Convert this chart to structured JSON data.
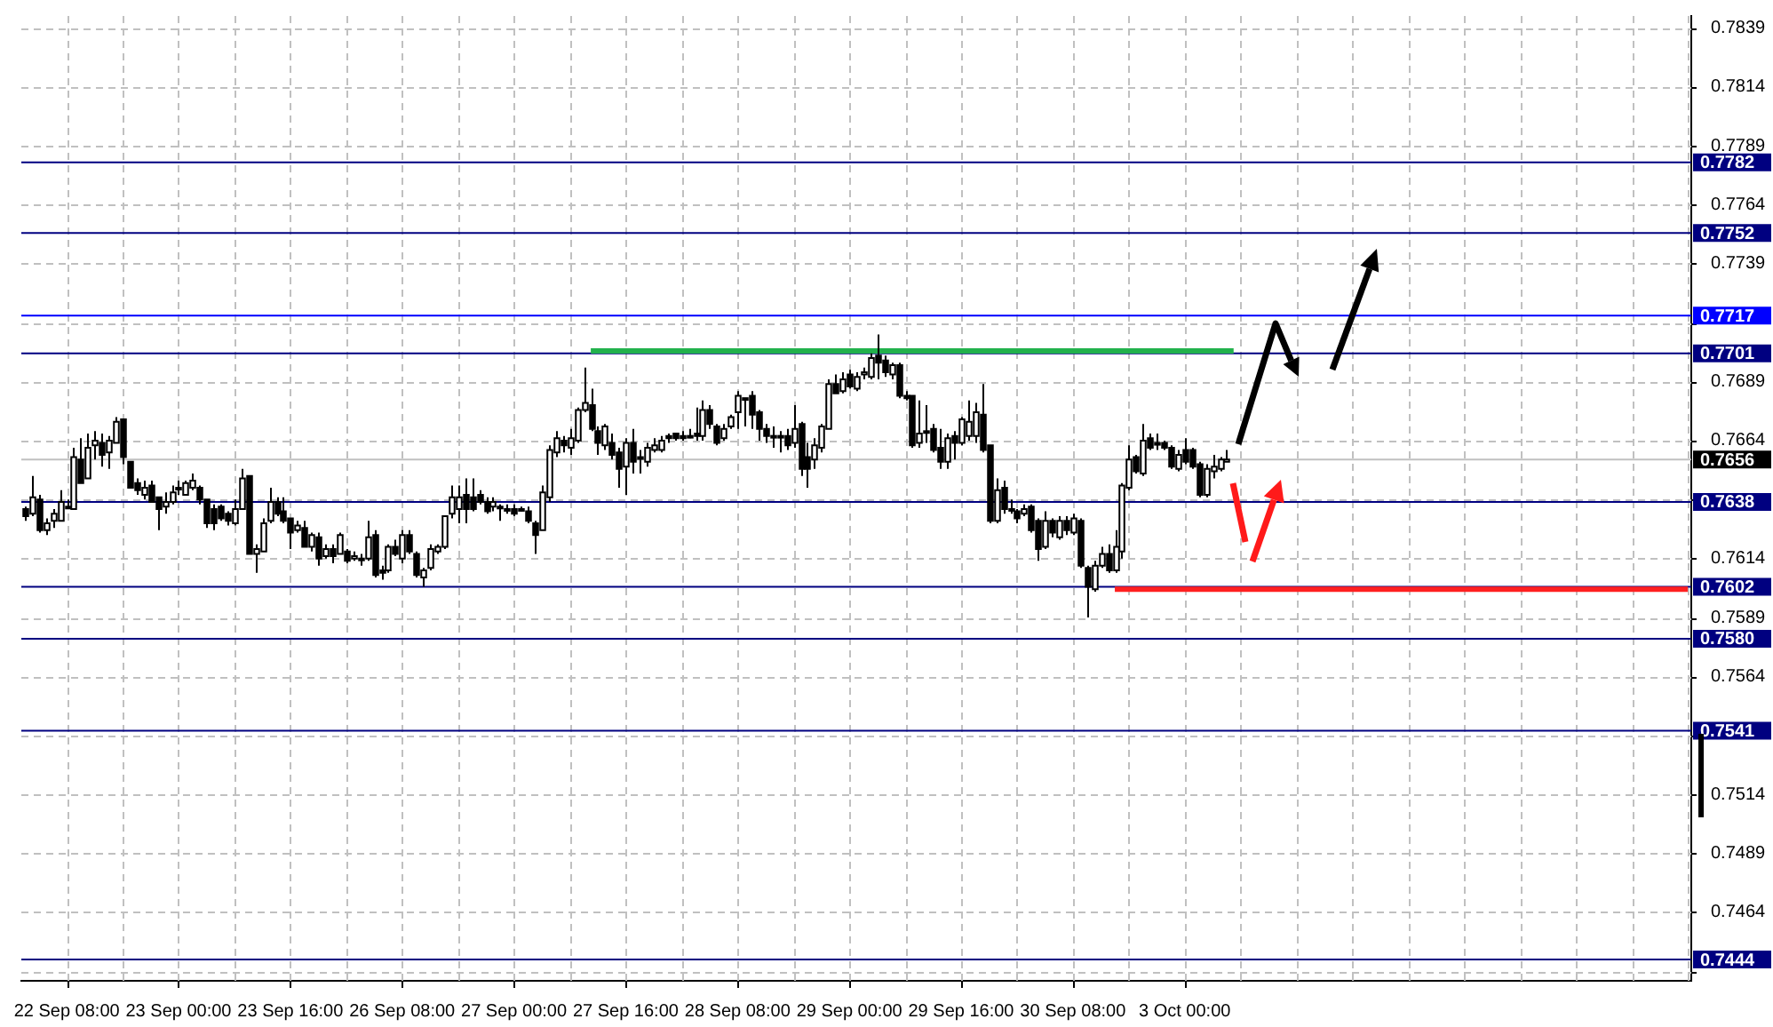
{
  "chart_data": {
    "type": "candlestick",
    "categories": [
      null,
      null,
      null,
      null,
      null,
      null,
      "22 Sep 08:00",
      null,
      null,
      null,
      null,
      null,
      null,
      null,
      null,
      null,
      null,
      null,
      null,
      null,
      null,
      null,
      "23 Sep 00:00",
      null,
      null,
      null,
      null,
      null,
      null,
      null,
      null,
      null,
      null,
      null,
      null,
      null,
      null,
      null,
      "23 Sep 16:00",
      null,
      null,
      null,
      null,
      null,
      null,
      null,
      null,
      null,
      null,
      null,
      null,
      null,
      null,
      null,
      "26 Sep 08:00",
      null,
      null,
      null,
      null,
      null,
      null,
      null,
      null,
      null,
      null,
      null,
      null,
      null,
      null,
      null,
      "27 Sep 00:00",
      null,
      null,
      null,
      null,
      null,
      null,
      null,
      null,
      null,
      null,
      null,
      null,
      null,
      null,
      null,
      "27 Sep 16:00",
      null,
      null,
      null,
      null,
      null,
      null,
      null,
      null,
      null,
      null,
      null,
      null,
      null,
      null,
      null,
      "28 Sep 08:00",
      null,
      null,
      null,
      null,
      null,
      null,
      null,
      null,
      null,
      null,
      null,
      null,
      null,
      null,
      null,
      "29 Sep 00:00",
      null,
      null,
      null,
      null,
      null,
      null,
      null,
      null,
      null,
      null,
      null,
      null,
      null,
      null,
      null,
      "29 Sep 16:00",
      null,
      null,
      null,
      null,
      null,
      null,
      null,
      null,
      null,
      null,
      null,
      null,
      null,
      null,
      null,
      "30 Sep 08:00",
      null,
      null,
      null,
      null,
      null,
      null,
      null,
      null,
      null,
      null,
      null,
      null,
      null,
      null,
      null,
      "3 Oct 00:00",
      null,
      null,
      null,
      null,
      null,
      null,
      null,
      null,
      null,
      null,
      null,
      null,
      null,
      null,
      null,
      null,
      null,
      null,
      null,
      null,
      null,
      null,
      null,
      null,
      null,
      null,
      null,
      null,
      null,
      null,
      null,
      null,
      null,
      null,
      null,
      null,
      null,
      null,
      null,
      null,
      null,
      null,
      null,
      null,
      null,
      null,
      null,
      null,
      null,
      null,
      null,
      null,
      null,
      null,
      null,
      null,
      null,
      null,
      null,
      null,
      null,
      null,
      null,
      null,
      null,
      null,
      null,
      null,
      null,
      null,
      null,
      null
    ],
    "ohlc": [
      [
        0.7635,
        0.7636,
        0.763,
        0.7632
      ],
      [
        0.7633,
        0.7649,
        0.7632,
        0.764
      ],
      [
        0.7639,
        0.7641,
        0.7625,
        0.7626
      ],
      [
        0.7626,
        0.7631,
        0.7624,
        0.7629
      ],
      [
        0.763,
        0.7635,
        0.7627,
        0.7633
      ],
      [
        0.763,
        0.7643,
        0.763,
        0.7638
      ],
      [
        0.7636,
        0.7639,
        0.7635,
        0.7636
      ],
      [
        0.7635,
        0.7661,
        0.7635,
        0.7657
      ],
      [
        0.7656,
        0.7665,
        0.7646,
        0.7646
      ],
      [
        0.7648,
        0.7667,
        0.7648,
        0.7661
      ],
      [
        0.7662,
        0.7668,
        0.7656,
        0.7664
      ],
      [
        0.7663,
        0.7667,
        0.7653,
        0.7658
      ],
      [
        0.7659,
        0.7666,
        0.7652,
        0.7664
      ],
      [
        0.7663,
        0.7674,
        0.7663,
        0.7672
      ],
      [
        0.7673,
        0.7673,
        0.7654,
        0.7657
      ],
      [
        0.7655,
        0.7655,
        0.7644,
        0.7644
      ],
      [
        0.7646,
        0.7648,
        0.7641,
        0.7643
      ],
      [
        0.7641,
        0.7647,
        0.7639,
        0.7644
      ],
      [
        0.7645,
        0.7647,
        0.7638,
        0.7638
      ],
      [
        0.764,
        0.764,
        0.7626,
        0.7635
      ],
      [
        0.7636,
        0.7642,
        0.7633,
        0.7638
      ],
      [
        0.7638,
        0.7645,
        0.7637,
        0.7642
      ],
      [
        0.7644,
        0.7647,
        0.7641,
        0.7644
      ],
      [
        0.7641,
        0.7647,
        0.7641,
        0.7646
      ],
      [
        0.7644,
        0.765,
        0.7643,
        0.7647
      ],
      [
        0.7644,
        0.7645,
        0.7637,
        0.7639
      ],
      [
        0.7639,
        0.7639,
        0.7627,
        0.7629
      ],
      [
        0.7635,
        0.7637,
        0.7626,
        0.7629
      ],
      [
        0.7636,
        0.7637,
        0.763,
        0.7631
      ],
      [
        0.7633,
        0.7634,
        0.7628,
        0.763
      ],
      [
        0.7629,
        0.7639,
        0.7628,
        0.7635
      ],
      [
        0.7635,
        0.7652,
        0.7635,
        0.7648
      ],
      [
        0.7649,
        0.7649,
        0.7616,
        0.7616
      ],
      [
        0.7616,
        0.762,
        0.7608,
        0.7618
      ],
      [
        0.7617,
        0.7631,
        0.7617,
        0.7629
      ],
      [
        0.763,
        0.7644,
        0.7629,
        0.7638
      ],
      [
        0.7638,
        0.764,
        0.7632,
        0.7633
      ],
      [
        0.7634,
        0.764,
        0.7629,
        0.763
      ],
      [
        0.7631,
        0.7631,
        0.7618,
        0.7625
      ],
      [
        0.7626,
        0.763,
        0.7625,
        0.7628
      ],
      [
        0.7627,
        0.763,
        0.7619,
        0.7619
      ],
      [
        0.7619,
        0.7625,
        0.7617,
        0.7624
      ],
      [
        0.7623,
        0.7625,
        0.7611,
        0.7614
      ],
      [
        0.7615,
        0.762,
        0.7614,
        0.7618
      ],
      [
        0.7618,
        0.762,
        0.7612,
        0.7615
      ],
      [
        0.7616,
        0.7625,
        0.7616,
        0.7624
      ],
      [
        0.7617,
        0.7618,
        0.7612,
        0.7613
      ],
      [
        0.7614,
        0.7617,
        0.7613,
        0.7615
      ],
      [
        0.7614,
        0.7616,
        0.7611,
        0.7614
      ],
      [
        0.7614,
        0.763,
        0.7613,
        0.7623
      ],
      [
        0.7624,
        0.7626,
        0.7606,
        0.7607
      ],
      [
        0.7609,
        0.7611,
        0.7605,
        0.7608
      ],
      [
        0.7609,
        0.762,
        0.7608,
        0.7619
      ],
      [
        0.7619,
        0.7622,
        0.7615,
        0.7616
      ],
      [
        0.7614,
        0.7626,
        0.7612,
        0.7624
      ],
      [
        0.7624,
        0.7626,
        0.7616,
        0.7617
      ],
      [
        0.7616,
        0.7617,
        0.7606,
        0.7607
      ],
      [
        0.7606,
        0.761,
        0.7602,
        0.7609
      ],
      [
        0.761,
        0.762,
        0.7609,
        0.7618
      ],
      [
        0.7617,
        0.762,
        0.7616,
        0.7619
      ],
      [
        0.7619,
        0.7632,
        0.7618,
        0.7632
      ],
      [
        0.7633,
        0.7645,
        0.7631,
        0.764
      ],
      [
        0.7635,
        0.7645,
        0.7629,
        0.764
      ],
      [
        0.7641,
        0.7648,
        0.7629,
        0.7635
      ],
      [
        0.764,
        0.7648,
        0.7634,
        0.7635
      ],
      [
        0.7641,
        0.7643,
        0.7637,
        0.7638
      ],
      [
        0.7638,
        0.764,
        0.7633,
        0.7634
      ],
      [
        0.7636,
        0.764,
        0.7634,
        0.7638
      ],
      [
        0.7636,
        0.7637,
        0.763,
        0.7636
      ],
      [
        0.7635,
        0.7637,
        0.7633,
        0.7635
      ],
      [
        0.7635,
        0.7637,
        0.7632,
        0.7633
      ],
      [
        0.7635,
        0.7636,
        0.7634,
        0.7635
      ],
      [
        0.7634,
        0.7636,
        0.7629,
        0.763
      ],
      [
        0.7629,
        0.763,
        0.7616,
        0.7624
      ],
      [
        0.7626,
        0.7645,
        0.7626,
        0.7642
      ],
      [
        0.764,
        0.7662,
        0.7638,
        0.766
      ],
      [
        0.7659,
        0.7668,
        0.7657,
        0.7665
      ],
      [
        0.7664,
        0.7666,
        0.7659,
        0.7662
      ],
      [
        0.7661,
        0.7669,
        0.7658,
        0.7665
      ],
      [
        0.7664,
        0.7678,
        0.7663,
        0.7677
      ],
      [
        0.7677,
        0.7695,
        0.7676,
        0.768
      ],
      [
        0.7679,
        0.7686,
        0.7668,
        0.7669
      ],
      [
        0.7668,
        0.767,
        0.7658,
        0.7663
      ],
      [
        0.7662,
        0.7671,
        0.766,
        0.767
      ],
      [
        0.7663,
        0.7667,
        0.7656,
        0.7658
      ],
      [
        0.7659,
        0.7661,
        0.7644,
        0.7652
      ],
      [
        0.7653,
        0.7665,
        0.7641,
        0.7663
      ],
      [
        0.7663,
        0.7669,
        0.765,
        0.7655
      ],
      [
        0.7657,
        0.766,
        0.765,
        0.7657
      ],
      [
        0.7655,
        0.7663,
        0.7653,
        0.7661
      ],
      [
        0.766,
        0.7665,
        0.7659,
        0.7662
      ],
      [
        0.766,
        0.7666,
        0.7659,
        0.7664
      ],
      [
        0.7666,
        0.7667,
        0.7663,
        0.7665
      ],
      [
        0.7667,
        0.7667,
        0.7664,
        0.7665
      ],
      [
        0.7666,
        0.7668,
        0.7664,
        0.7665
      ],
      [
        0.7666,
        0.7669,
        0.7665,
        0.7666
      ],
      [
        0.7667,
        0.7678,
        0.7664,
        0.7666
      ],
      [
        0.7666,
        0.7681,
        0.7664,
        0.7677
      ],
      [
        0.7677,
        0.7679,
        0.7669,
        0.7671
      ],
      [
        0.767,
        0.7671,
        0.7662,
        0.7663
      ],
      [
        0.7665,
        0.7671,
        0.7664,
        0.7669
      ],
      [
        0.767,
        0.7675,
        0.7669,
        0.7674
      ],
      [
        0.7676,
        0.7685,
        0.7669,
        0.7683
      ],
      [
        0.7682,
        0.7682,
        0.767,
        0.7682
      ],
      [
        0.7683,
        0.7685,
        0.7669,
        0.7675
      ],
      [
        0.7676,
        0.7677,
        0.7664,
        0.7669
      ],
      [
        0.7669,
        0.7671,
        0.7663,
        0.7666
      ],
      [
        0.7666,
        0.767,
        0.7661,
        0.7666
      ],
      [
        0.7666,
        0.7668,
        0.7659,
        0.7666
      ],
      [
        0.7666,
        0.7669,
        0.766,
        0.7662
      ],
      [
        0.7663,
        0.7679,
        0.7661,
        0.7669
      ],
      [
        0.7671,
        0.7672,
        0.7649,
        0.7652
      ],
      [
        0.7657,
        0.7663,
        0.7644,
        0.7652
      ],
      [
        0.7656,
        0.7665,
        0.7652,
        0.7662
      ],
      [
        0.7661,
        0.7671,
        0.7659,
        0.767
      ],
      [
        0.7669,
        0.769,
        0.7669,
        0.7688
      ],
      [
        0.7688,
        0.7692,
        0.7684,
        0.7684
      ],
      [
        0.7685,
        0.7693,
        0.7684,
        0.769
      ],
      [
        0.7692,
        0.7694,
        0.7686,
        0.7687
      ],
      [
        0.7686,
        0.7693,
        0.7685,
        0.7691
      ],
      [
        0.7692,
        0.7695,
        0.769,
        0.7693
      ],
      [
        0.7691,
        0.7701,
        0.769,
        0.7699
      ],
      [
        0.77,
        0.7709,
        0.769,
        0.7697
      ],
      [
        0.7698,
        0.77,
        0.7691,
        0.7693
      ],
      [
        0.7692,
        0.7697,
        0.769,
        0.7696
      ],
      [
        0.7696,
        0.7697,
        0.7682,
        0.7683
      ],
      [
        0.7683,
        0.7685,
        0.7681,
        0.7682
      ],
      [
        0.7683,
        0.7683,
        0.7661,
        0.7662
      ],
      [
        0.7663,
        0.7681,
        0.7661,
        0.7667
      ],
      [
        0.7668,
        0.7679,
        0.7663,
        0.7668
      ],
      [
        0.7669,
        0.7671,
        0.7659,
        0.766
      ],
      [
        0.7661,
        0.7669,
        0.7652,
        0.7655
      ],
      [
        0.7655,
        0.7667,
        0.7652,
        0.7665
      ],
      [
        0.7666,
        0.7668,
        0.7656,
        0.7663
      ],
      [
        0.7663,
        0.7674,
        0.7662,
        0.7673
      ],
      [
        0.7666,
        0.7681,
        0.7664,
        0.7672
      ],
      [
        0.7666,
        0.768,
        0.7663,
        0.7676
      ],
      [
        0.7675,
        0.7688,
        0.7659,
        0.766
      ],
      [
        0.7662,
        0.7662,
        0.7629,
        0.763
      ],
      [
        0.763,
        0.7648,
        0.7629,
        0.7643
      ],
      [
        0.7644,
        0.7647,
        0.7633,
        0.7635
      ],
      [
        0.7635,
        0.7639,
        0.7633,
        0.7635
      ],
      [
        0.7634,
        0.7635,
        0.7629,
        0.7631
      ],
      [
        0.7633,
        0.7637,
        0.7632,
        0.7635
      ],
      [
        0.7636,
        0.7637,
        0.7625,
        0.7626
      ],
      [
        0.763,
        0.7631,
        0.7613,
        0.7618
      ],
      [
        0.7619,
        0.7634,
        0.7618,
        0.763
      ],
      [
        0.763,
        0.7631,
        0.7623,
        0.7625
      ],
      [
        0.7623,
        0.7632,
        0.7622,
        0.763
      ],
      [
        0.763,
        0.7632,
        0.7624,
        0.7626
      ],
      [
        0.7625,
        0.7633,
        0.7624,
        0.7631
      ],
      [
        0.763,
        0.7631,
        0.761,
        0.7611
      ],
      [
        0.761,
        0.7611,
        0.7589,
        0.7602
      ],
      [
        0.7601,
        0.7613,
        0.76,
        0.7611
      ],
      [
        0.7611,
        0.7619,
        0.761,
        0.7616
      ],
      [
        0.7616,
        0.762,
        0.7608,
        0.7609
      ],
      [
        0.7609,
        0.7626,
        0.7608,
        0.7619
      ],
      [
        0.7617,
        0.7646,
        0.7614,
        0.7645
      ],
      [
        0.7644,
        0.7662,
        0.7643,
        0.7656
      ],
      [
        0.7657,
        0.7658,
        0.765,
        0.7651
      ],
      [
        0.765,
        0.7671,
        0.7649,
        0.7664
      ],
      [
        0.7665,
        0.7667,
        0.766,
        0.7661
      ],
      [
        0.7663,
        0.7667,
        0.766,
        0.7663
      ],
      [
        0.7663,
        0.7664,
        0.766,
        0.7661
      ],
      [
        0.7661,
        0.7662,
        0.7652,
        0.7653
      ],
      [
        0.7652,
        0.766,
        0.7651,
        0.7658
      ],
      [
        0.766,
        0.7665,
        0.7654,
        0.7655
      ],
      [
        0.766,
        0.7661,
        0.7652,
        0.7653
      ],
      [
        0.7654,
        0.7655,
        0.764,
        0.7641
      ],
      [
        0.7641,
        0.7654,
        0.764,
        0.7652
      ],
      [
        0.7651,
        0.7658,
        0.7648,
        0.7653
      ],
      [
        0.7652,
        0.7657,
        0.7651,
        0.7656
      ],
      [
        0.7655,
        0.766,
        0.7655,
        0.7656
      ],
      null,
      null,
      null,
      null,
      null,
      null,
      null,
      null,
      null,
      null,
      null,
      null,
      null,
      null,
      null,
      null,
      null,
      null,
      null,
      null,
      null,
      null,
      null,
      null,
      null,
      null,
      null,
      null,
      null,
      null,
      null,
      null,
      null,
      null,
      null,
      null,
      null,
      null,
      null,
      null,
      null,
      null,
      null,
      null,
      null,
      null,
      null,
      null,
      null,
      null,
      null,
      null,
      null,
      null,
      null,
      null,
      null,
      null,
      null,
      null,
      null,
      null,
      null,
      null,
      null,
      null
    ],
    "series": [
      {
        "type": "line",
        "color": "#22b14c",
        "values": [
          null,
          null,
          null,
          null,
          null,
          null,
          null,
          null,
          null,
          null,
          null,
          null,
          null,
          null,
          null,
          null,
          null,
          null,
          null,
          null,
          null,
          null,
          null,
          null,
          null,
          null,
          null,
          null,
          null,
          null,
          null,
          null,
          null,
          null,
          null,
          null,
          null,
          null,
          null,
          null,
          null,
          null,
          null,
          null,
          null,
          null,
          null,
          null,
          null,
          null,
          null,
          null,
          null,
          null,
          null,
          null,
          null,
          null,
          null,
          null,
          null,
          null,
          null,
          null,
          null,
          null,
          null,
          null,
          null,
          null,
          null,
          null,
          null,
          null,
          null,
          null,
          null,
          null,
          null,
          null,
          null,
          0.7702,
          0.7702,
          0.7702,
          0.7702,
          0.7702,
          0.7702,
          0.7702,
          0.7702,
          0.7702,
          0.7702,
          0.7702,
          0.7702,
          0.7702,
          0.7702,
          0.7702,
          0.7702,
          0.7702,
          0.7702,
          0.7702,
          0.7702,
          0.7702,
          0.7702,
          0.7702,
          0.7702,
          0.7702,
          0.7702,
          0.7702,
          0.7702,
          0.7702,
          0.7702,
          0.7702,
          0.7702,
          0.7702,
          0.7702,
          0.7702,
          0.7702,
          0.7702,
          0.7702,
          0.7702,
          0.7702,
          0.7702,
          0.7702,
          0.7702,
          0.7702,
          0.7702,
          0.7702,
          0.7702,
          0.7702,
          0.7702,
          0.7702,
          0.7702,
          0.7702,
          0.7702,
          0.7702,
          0.7702,
          0.7702,
          0.7702,
          0.7702,
          0.7702,
          0.7702,
          0.7702,
          0.7702,
          0.7702,
          0.7702,
          0.7702,
          0.7702,
          0.7702,
          0.7702,
          0.7702,
          0.7702,
          0.7702,
          0.7702,
          0.7702,
          0.7702,
          0.7702,
          0.7702,
          0.7702,
          0.7702,
          0.7702,
          0.7702,
          0.7702,
          0.7702,
          0.7702,
          0.7702,
          0.7702,
          0.7702,
          0.7702,
          0.7702,
          0.7702,
          0.7702,
          0.7702,
          0.7702,
          0.7702,
          null,
          null,
          null,
          null,
          null,
          null,
          null,
          null,
          null,
          null,
          null,
          null,
          null,
          null,
          null,
          null,
          null,
          null,
          null,
          null,
          null,
          null,
          null,
          null,
          null,
          null,
          null,
          null,
          null,
          null,
          null,
          null,
          null,
          null,
          null,
          null,
          null,
          null,
          null,
          null,
          null,
          null,
          null,
          null,
          null,
          null,
          null,
          null,
          null,
          null,
          null,
          null,
          null,
          null,
          null,
          null,
          null,
          null,
          null,
          null,
          null,
          null,
          null,
          null,
          null
        ]
      },
      {
        "type": "line",
        "color": "#ff2020",
        "values": [
          null,
          null,
          null,
          null,
          null,
          null,
          null,
          null,
          null,
          null,
          null,
          null,
          null,
          null,
          null,
          null,
          null,
          null,
          null,
          null,
          null,
          null,
          null,
          null,
          null,
          null,
          null,
          null,
          null,
          null,
          null,
          null,
          null,
          null,
          null,
          null,
          null,
          null,
          null,
          null,
          null,
          null,
          null,
          null,
          null,
          null,
          null,
          null,
          null,
          null,
          null,
          null,
          null,
          null,
          null,
          null,
          null,
          null,
          null,
          null,
          null,
          null,
          null,
          null,
          null,
          null,
          null,
          null,
          null,
          null,
          null,
          null,
          null,
          null,
          null,
          null,
          null,
          null,
          null,
          null,
          null,
          null,
          null,
          null,
          null,
          null,
          null,
          null,
          null,
          null,
          null,
          null,
          null,
          null,
          null,
          null,
          null,
          null,
          null,
          null,
          null,
          null,
          null,
          null,
          null,
          null,
          null,
          null,
          null,
          null,
          null,
          null,
          null,
          null,
          null,
          null,
          null,
          null,
          null,
          null,
          null,
          null,
          null,
          null,
          null,
          null,
          null,
          null,
          null,
          null,
          null,
          null,
          null,
          null,
          null,
          null,
          null,
          null,
          null,
          null,
          null,
          null,
          null,
          null,
          null,
          null,
          null,
          null,
          null,
          null,
          null,
          null,
          null,
          null,
          null,
          null,
          0.7601,
          0.7601,
          0.7601,
          0.7601,
          0.7601,
          0.7601,
          0.7601,
          0.7601,
          0.7601,
          0.7601,
          0.7601,
          0.7601,
          0.7601,
          0.7601,
          0.7601,
          0.7601,
          0.7601,
          0.7601,
          0.7601,
          0.7601,
          0.7601,
          0.7601,
          0.7601,
          0.7601,
          0.7601,
          0.7601,
          0.7601,
          0.7601,
          0.7601,
          0.7601,
          0.7601,
          0.7601,
          0.7601,
          0.7601,
          0.7601,
          0.7601,
          0.7601,
          0.7601,
          0.7601,
          0.7601,
          0.7601,
          0.7601,
          0.7601,
          0.7601,
          0.7601,
          0.7601,
          0.7601,
          0.7601,
          0.7601,
          0.7601,
          0.7601,
          0.7601,
          0.7601,
          0.7601,
          0.7601,
          0.7601,
          0.7601,
          0.7601,
          0.7601,
          0.7601,
          0.7601,
          0.7601,
          0.7601,
          0.7601,
          0.7601,
          0.7601,
          0.7601,
          0.7601,
          0.7601,
          0.7601,
          0.7601,
          0.7601,
          0.7601,
          0.7601,
          0.7601,
          0.7601,
          0.7601,
          0.7601,
          0.7601,
          0.7601,
          0.7601,
          0.7601,
          0.7601
        ]
      }
    ],
    "ylim": [
      0.7435,
      0.7844
    ],
    "yticks": [
      {
        "value": 0.7439,
        "label": null
      },
      0.7464,
      0.7489,
      0.7514,
      {
        "value": 0.7539,
        "label": null
      },
      0.7564,
      0.7589,
      0.7614,
      {
        "value": 0.7639,
        "label": null
      },
      0.7664,
      0.7689,
      {
        "value": 0.7714,
        "label": null
      },
      0.7739,
      0.7764,
      0.7789,
      0.7814,
      0.7839
    ],
    "ref_lines": [
      {
        "axis": "y",
        "value": 0.7782,
        "label": "0.7782",
        "color": "#000080"
      },
      {
        "axis": "y",
        "value": 0.7752,
        "label": "0.7752",
        "color": "#000080"
      },
      {
        "axis": "y",
        "value": 0.7717,
        "label": "0.7717",
        "color": "#0000ff"
      },
      {
        "axis": "y",
        "value": 0.7701,
        "label": "0.7701",
        "color": "#000080"
      },
      {
        "axis": "y",
        "value": 0.7656,
        "label": "0.7656",
        "color": "#c0c0c0"
      },
      {
        "axis": "y",
        "value": 0.7638,
        "label": "0.7638",
        "color": "#000080"
      },
      {
        "axis": "y",
        "value": 0.7602,
        "label": "0.7602",
        "color": "#000080"
      },
      {
        "axis": "y",
        "value": 0.758,
        "label": "0.7580",
        "color": "#000080"
      },
      {
        "axis": "y",
        "value": 0.7541,
        "label": "0.7541",
        "color": "#000080"
      },
      {
        "axis": "y",
        "value": 0.7444,
        "label": "0.7444",
        "color": "#000080"
      }
    ],
    "grid": true
  }
}
